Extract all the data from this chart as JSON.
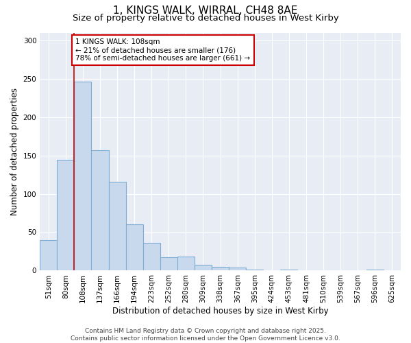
{
  "title_line1": "1, KINGS WALK, WIRRAL, CH48 8AE",
  "title_line2": "Size of property relative to detached houses in West Kirby",
  "xlabel": "Distribution of detached houses by size in West Kirby",
  "ylabel": "Number of detached properties",
  "categories": [
    "51sqm",
    "80sqm",
    "108sqm",
    "137sqm",
    "166sqm",
    "194sqm",
    "223sqm",
    "252sqm",
    "280sqm",
    "309sqm",
    "338sqm",
    "367sqm",
    "395sqm",
    "424sqm",
    "453sqm",
    "481sqm",
    "510sqm",
    "539sqm",
    "567sqm",
    "596sqm",
    "625sqm"
  ],
  "values": [
    40,
    144,
    246,
    157,
    116,
    60,
    36,
    17,
    18,
    8,
    5,
    4,
    1,
    0,
    1,
    0,
    0,
    0,
    0,
    1,
    0
  ],
  "bar_color": "#c8d9ed",
  "bar_edge_color": "#7eadd4",
  "highlight_index": 2,
  "highlight_line_color": "#cc0000",
  "annotation_text": "1 KINGS WALK: 108sqm\n← 21% of detached houses are smaller (176)\n78% of semi-detached houses are larger (661) →",
  "annotation_box_color": "#cc0000",
  "ylim": [
    0,
    310
  ],
  "yticks": [
    0,
    50,
    100,
    150,
    200,
    250,
    300
  ],
  "background_color": "#e8edf5",
  "footer_line1": "Contains HM Land Registry data © Crown copyright and database right 2025.",
  "footer_line2": "Contains public sector information licensed under the Open Government Licence v3.0.",
  "title_fontsize": 11,
  "subtitle_fontsize": 9.5,
  "axis_label_fontsize": 8.5,
  "tick_fontsize": 7.5,
  "annotation_fontsize": 7.5,
  "footer_fontsize": 6.5
}
